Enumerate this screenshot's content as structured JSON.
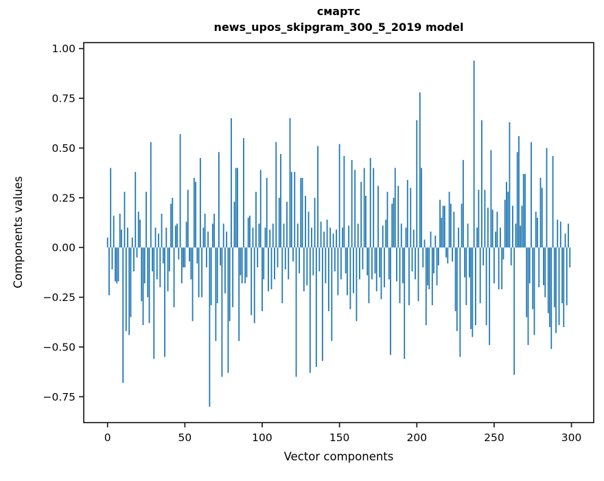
{
  "figure": {
    "title_line1": "смартс",
    "title_line2": "news_upos_skipgram_300_5_2019 model"
  },
  "chart_data": {
    "type": "bar",
    "title": "смартс\nnews_upos_skipgram_300_5_2019 model",
    "xlabel": "Vector components",
    "ylabel": "Components values",
    "bar_color": "#1f77b4",
    "axis_color": "#1c1c1c",
    "grid": false,
    "legend": "none",
    "x_start": 0,
    "xlim": [
      -15.4,
      314.4
    ],
    "ylim": [
      -0.88,
      1.03
    ],
    "xticks": [
      0,
      50,
      100,
      150,
      200,
      250,
      300
    ],
    "xtick_labels": [
      "0",
      "50",
      "100",
      "150",
      "200",
      "250",
      "300"
    ],
    "yticks": [
      1.0,
      0.75,
      0.5,
      0.25,
      0.0,
      -0.25,
      -0.5,
      -0.75
    ],
    "ytick_labels": [
      "1.00",
      "0.75",
      "0.50",
      "0.25",
      "0.00",
      "−0.25",
      "−0.50",
      "−0.75"
    ],
    "values": [
      0.05,
      -0.24,
      0.4,
      -0.11,
      0.16,
      -0.17,
      -0.18,
      -0.17,
      0.17,
      0.09,
      -0.68,
      0.28,
      -0.42,
      0.1,
      -0.44,
      -0.35,
      0.05,
      -0.12,
      0.38,
      -0.05,
      0.18,
      0.14,
      -0.27,
      -0.39,
      -0.18,
      0.28,
      -0.25,
      -0.38,
      0.53,
      -0.12,
      -0.56,
      0.1,
      -0.16,
      0.07,
      -0.2,
      0.17,
      -0.08,
      -0.55,
      0.1,
      -0.22,
      -0.12,
      0.22,
      0.25,
      -0.3,
      0.11,
      0.12,
      -0.06,
      0.57,
      -0.18,
      -0.1,
      -0.1,
      0.13,
      0.29,
      -0.07,
      -0.16,
      -0.37,
      0.35,
      0.33,
      -0.08,
      -0.25,
      0.45,
      -0.25,
      0.1,
      0.17,
      -0.1,
      0.08,
      -0.8,
      -0.29,
      0.12,
      0.17,
      -0.47,
      -0.28,
      0.48,
      -0.09,
      -0.65,
      0.12,
      -0.23,
      0.08,
      -0.63,
      -0.37,
      0.65,
      -0.3,
      0.23,
      0.4,
      0.4,
      -0.47,
      -0.14,
      -0.18,
      0.55,
      -0.18,
      -0.15,
      0.15,
      0.16,
      -0.34,
      0.1,
      -0.38,
      0.28,
      -0.1,
      0.12,
      0.39,
      -0.32,
      -0.16,
      0.1,
      0.35,
      -0.22,
      0.09,
      -0.21,
      0.12,
      -0.16,
      0.53,
      -0.1,
      0.25,
      0.47,
      -0.28,
      0.12,
      -0.11,
      0.23,
      -0.16,
      0.65,
      0.38,
      -0.07,
      0.38,
      -0.65,
      0.12,
      -0.13,
      0.35,
      0.35,
      -0.22,
      0.26,
      -0.19,
      0.18,
      -0.63,
      0.1,
      -0.14,
      0.25,
      -0.6,
      0.51,
      -0.12,
      0.13,
      -0.57,
      0.08,
      -0.18,
      0.14,
      -0.32,
      0.1,
      -0.47,
      0.07,
      -0.12,
      0.09,
      -0.24,
      0.52,
      -0.16,
      0.1,
      0.46,
      -0.13,
      -0.24,
      0.11,
      -0.31,
      0.44,
      -0.23,
      0.39,
      -0.37,
      0.12,
      -0.16,
      0.33,
      -0.11,
      0.4,
      0.26,
      -0.14,
      -0.28,
      0.45,
      -0.16,
      0.4,
      -0.13,
      -0.22,
      0.31,
      -0.15,
      -0.26,
      0.11,
      -0.2,
      0.14,
      0.28,
      -0.16,
      -0.54,
      0.22,
      0.25,
      0.4,
      -0.17,
      0.31,
      -0.28,
      0.12,
      -0.18,
      -0.56,
      0.1,
      0.34,
      -0.29,
      0.3,
      -0.12,
      0.09,
      -0.16,
      0.64,
      -0.27,
      0.78,
      0.4,
      -0.1,
      0.04,
      -0.39,
      -0.19,
      -0.21,
      0.08,
      -0.29,
      -0.13,
      0.06,
      -0.19,
      -0.09,
      0.24,
      0.15,
      0.21,
      0.21,
      -0.05,
      -0.08,
      0.28,
      0.22,
      -0.07,
      0.18,
      -0.32,
      -0.42,
      0.1,
      -0.55,
      0.22,
      0.44,
      -0.15,
      -0.29,
      0.12,
      -0.15,
      -0.41,
      -0.45,
      0.94,
      -0.39,
      0.1,
      0.29,
      -0.28,
      0.64,
      -0.09,
      0.29,
      -0.39,
      0.2,
      -0.49,
      0.49,
      0.19,
      -0.18,
      0.08,
      0.18,
      -0.21,
      0.1,
      -0.21,
      -0.06,
      0.24,
      0.33,
      0.28,
      0.63,
      -0.09,
      0.21,
      -0.64,
      0.12,
      0.48,
      0.56,
      0.11,
      0.21,
      0.37,
      0.37,
      -0.35,
      -0.49,
      -0.18,
      0.53,
      -0.31,
      -0.44,
      0.18,
      0.15,
      -0.2,
      0.35,
      0.3,
      -0.19,
      -0.25,
      0.5,
      -0.33,
      -0.4,
      -0.51,
      0.46,
      -0.3,
      -0.43,
      0.14,
      -0.39,
      0.13,
      -0.28,
      -0.4,
      0.07,
      -0.29,
      0.12,
      -0.1
    ]
  }
}
